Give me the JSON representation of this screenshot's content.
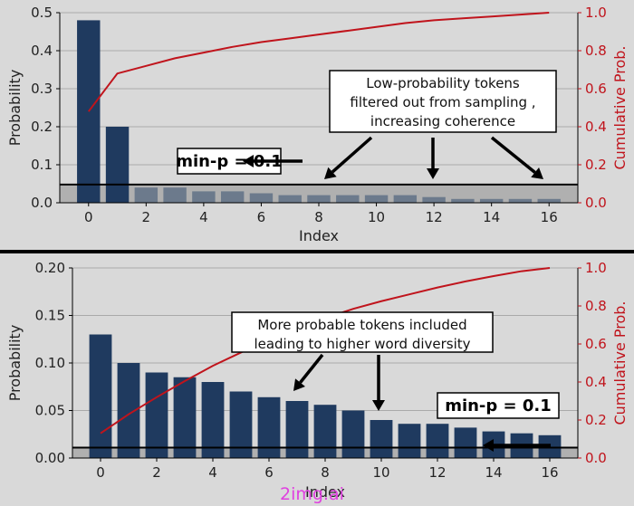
{
  "chart_data": [
    {
      "type": "bar",
      "panel": "top",
      "categories": [
        0,
        1,
        2,
        3,
        4,
        5,
        6,
        7,
        8,
        9,
        10,
        11,
        12,
        13,
        14,
        15,
        16
      ],
      "values": [
        0.48,
        0.2,
        0.04,
        0.04,
        0.03,
        0.03,
        0.025,
        0.02,
        0.02,
        0.02,
        0.02,
        0.02,
        0.015,
        0.01,
        0.01,
        0.01,
        0.01
      ],
      "cumulative": [
        0.48,
        0.68,
        0.72,
        0.76,
        0.79,
        0.82,
        0.845,
        0.865,
        0.885,
        0.905,
        0.925,
        0.945,
        0.96,
        0.97,
        0.98,
        0.99,
        1.0
      ],
      "xlabel": "Index",
      "ylabel": "Probability",
      "y2label": "Cumulative Prob.",
      "ylim": [
        0,
        0.5
      ],
      "y2lim": [
        0,
        1.0
      ],
      "xticks": [
        "0",
        "2",
        "4",
        "6",
        "8",
        "10",
        "12",
        "14",
        "16"
      ],
      "yticks": [
        "0.0",
        "0.1",
        "0.2",
        "0.3",
        "0.4",
        "0.5"
      ],
      "y2ticks": [
        "0.0",
        "0.2",
        "0.4",
        "0.6",
        "0.8",
        "1.0"
      ],
      "threshold": 0.048,
      "threshold_label": "min-p = 0.1",
      "annotation_lines": [
        "Low-probability tokens",
        "filtered out from sampling ,",
        "increasing coherence"
      ],
      "bar_color": "#1f3a5f",
      "cum_color": "#c0141c"
    },
    {
      "type": "bar",
      "panel": "bottom",
      "categories": [
        0,
        1,
        2,
        3,
        4,
        5,
        6,
        7,
        8,
        9,
        10,
        11,
        12,
        13,
        14,
        15,
        16
      ],
      "values": [
        0.13,
        0.1,
        0.09,
        0.085,
        0.08,
        0.07,
        0.064,
        0.06,
        0.056,
        0.05,
        0.04,
        0.036,
        0.036,
        0.032,
        0.028,
        0.026,
        0.024
      ],
      "cumulative": [
        0.13,
        0.23,
        0.32,
        0.405,
        0.485,
        0.555,
        0.619,
        0.679,
        0.735,
        0.785,
        0.825,
        0.861,
        0.897,
        0.929,
        0.957,
        0.983,
        1.0
      ],
      "xlabel": "Index",
      "ylabel": "Probability",
      "y2label": "Cumulative Prob.",
      "ylim": [
        0,
        0.2
      ],
      "y2lim": [
        0,
        1.0
      ],
      "xticks": [
        "0",
        "2",
        "4",
        "6",
        "8",
        "10",
        "12",
        "14",
        "16"
      ],
      "yticks": [
        "0.00",
        "0.05",
        "0.10",
        "0.15",
        "0.20"
      ],
      "y2ticks": [
        "0.0",
        "0.2",
        "0.4",
        "0.6",
        "0.8",
        "1.0"
      ],
      "threshold": 0.011,
      "threshold_label": "min-p = 0.1",
      "annotation_lines": [
        "More probable tokens included",
        "leading to higher word diversity"
      ],
      "bar_color": "#1f3a5f",
      "cum_color": "#c0141c"
    }
  ],
  "watermark": "2img.ai"
}
